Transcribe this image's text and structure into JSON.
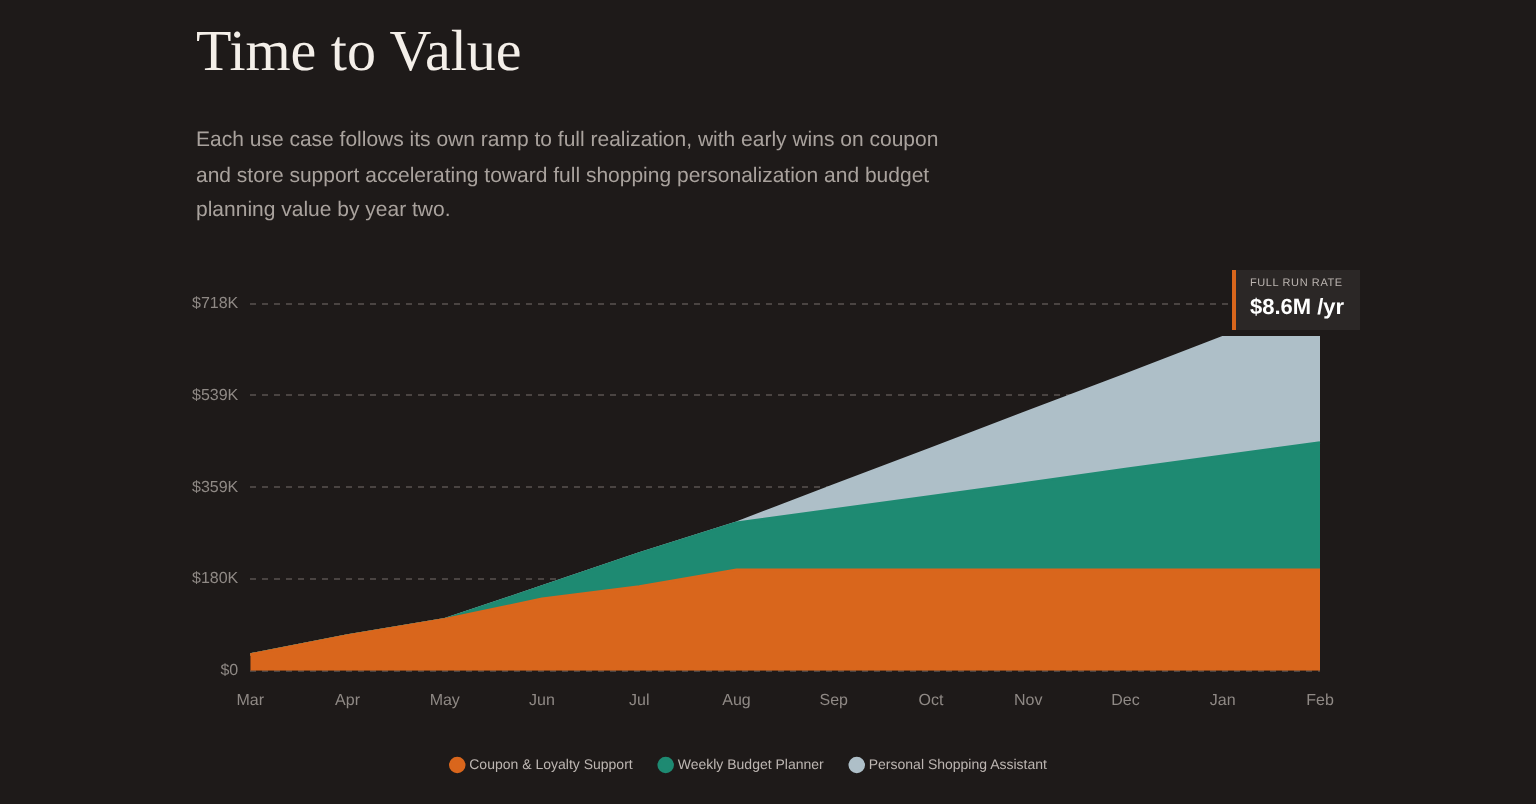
{
  "chart_data": {
    "type": "area",
    "title": "Time to Value",
    "subtitle": "Each use case follows its own ramp to full realization, with early wins on coupon and store support accelerating toward full shopping personalization and budget planning value by year two.",
    "categories": [
      "Mar",
      "Apr",
      "May",
      "Jun",
      "Jul",
      "Aug",
      "Sep",
      "Oct",
      "Nov",
      "Dec",
      "Jan",
      "Feb"
    ],
    "stacked": true,
    "series": [
      {
        "name": "Coupon & Loyalty Support",
        "color": "#d9661c",
        "values": [
          32,
          69,
          101,
          141,
          165,
          198,
          198,
          198,
          198,
          198,
          198,
          198
        ]
      },
      {
        "name": "Weekly Budget Planner",
        "color": "#1e8a72",
        "values": [
          0,
          0,
          0,
          24,
          65,
          92,
          118,
          144,
          170,
          197,
          223,
          249
        ]
      },
      {
        "name": "Personal Shopping Assistant",
        "color": "#aebfc8",
        "values": [
          0,
          0,
          0,
          0,
          0,
          0,
          47,
          93,
          140,
          185,
          232,
          206
        ]
      }
    ],
    "ylim": [
      0,
      718
    ],
    "yticks": [
      {
        "value": 0,
        "label": "$0"
      },
      {
        "value": 180,
        "label": "$180K"
      },
      {
        "value": 359,
        "label": "$359K"
      },
      {
        "value": 539,
        "label": "$539K"
      },
      {
        "value": 718,
        "label": "$718K"
      }
    ],
    "grid": "y",
    "legend": "bottom",
    "annotations": [
      "FULL RUN RATE",
      "$8.6M /yr"
    ]
  }
}
